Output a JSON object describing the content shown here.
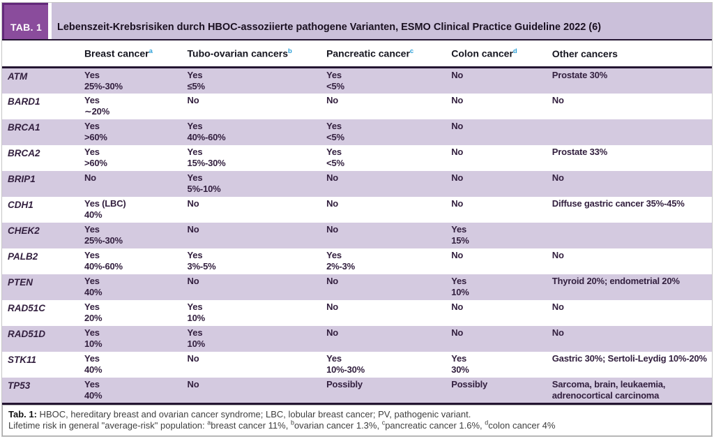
{
  "header": {
    "tab_label": "TAB. 1",
    "title": "Lebenszeit-Krebsrisiken durch HBOC-assoziierte pathogene Varianten, ESMO Clinical Practice Guideline 2022 (6)"
  },
  "columns": [
    {
      "label": "Breast cancer",
      "sup": "a"
    },
    {
      "label": "Tubo-ovarian cancers",
      "sup": "b"
    },
    {
      "label": "Pancreatic cancer",
      "sup": "c"
    },
    {
      "label": "Colon cancer",
      "sup": "d"
    },
    {
      "label": "Other cancers",
      "sup": ""
    }
  ],
  "rows": [
    {
      "gene": "ATM",
      "breast": [
        "Yes",
        "25%-30%"
      ],
      "tubo": [
        "Yes",
        "≤5%"
      ],
      "pancreatic": [
        "Yes",
        "<5%"
      ],
      "colon": [
        "No",
        ""
      ],
      "other": [
        "Prostate 30%",
        ""
      ]
    },
    {
      "gene": "BARD1",
      "breast": [
        "Yes",
        "∼20%"
      ],
      "tubo": [
        "No",
        ""
      ],
      "pancreatic": [
        "No",
        ""
      ],
      "colon": [
        "No",
        ""
      ],
      "other": [
        "No",
        ""
      ]
    },
    {
      "gene": "BRCA1",
      "breast": [
        "Yes",
        ">60%"
      ],
      "tubo": [
        "Yes",
        "40%-60%"
      ],
      "pancreatic": [
        "Yes",
        "<5%"
      ],
      "colon": [
        "No",
        ""
      ],
      "other": [
        "",
        ""
      ]
    },
    {
      "gene": "BRCA2",
      "breast": [
        "Yes",
        ">60%"
      ],
      "tubo": [
        "Yes",
        "15%-30%"
      ],
      "pancreatic": [
        "Yes",
        "<5%"
      ],
      "colon": [
        "No",
        ""
      ],
      "other": [
        "Prostate 33%",
        ""
      ]
    },
    {
      "gene": "BRIP1",
      "breast": [
        "No",
        ""
      ],
      "tubo": [
        "Yes",
        "5%-10%"
      ],
      "pancreatic": [
        "No",
        ""
      ],
      "colon": [
        "No",
        ""
      ],
      "other": [
        "No",
        ""
      ]
    },
    {
      "gene": "CDH1",
      "breast": [
        "Yes (LBC)",
        "40%"
      ],
      "tubo": [
        "No",
        ""
      ],
      "pancreatic": [
        "No",
        ""
      ],
      "colon": [
        "No",
        ""
      ],
      "other": [
        "Diffuse gastric cancer 35%-45%",
        ""
      ]
    },
    {
      "gene": "CHEK2",
      "breast": [
        "Yes",
        "25%-30%"
      ],
      "tubo": [
        "No",
        ""
      ],
      "pancreatic": [
        "No",
        ""
      ],
      "colon": [
        "Yes",
        "15%"
      ],
      "other": [
        "",
        ""
      ]
    },
    {
      "gene": "PALB2",
      "breast": [
        "Yes",
        "40%-60%"
      ],
      "tubo": [
        "Yes",
        "3%-5%"
      ],
      "pancreatic": [
        "Yes",
        "2%-3%"
      ],
      "colon": [
        "No",
        ""
      ],
      "other": [
        "No",
        ""
      ]
    },
    {
      "gene": "PTEN",
      "breast": [
        "Yes",
        "40%"
      ],
      "tubo": [
        "No",
        ""
      ],
      "pancreatic": [
        "No",
        ""
      ],
      "colon": [
        "Yes",
        "10%"
      ],
      "other": [
        "Thyroid 20%; endometrial 20%",
        ""
      ]
    },
    {
      "gene": "RAD51C",
      "breast": [
        "Yes",
        "20%"
      ],
      "tubo": [
        "Yes",
        "10%"
      ],
      "pancreatic": [
        "No",
        ""
      ],
      "colon": [
        "No",
        ""
      ],
      "other": [
        "No",
        ""
      ]
    },
    {
      "gene": "RAD51D",
      "breast": [
        "Yes",
        "10%"
      ],
      "tubo": [
        "Yes",
        "10%"
      ],
      "pancreatic": [
        "No",
        ""
      ],
      "colon": [
        "No",
        ""
      ],
      "other": [
        "No",
        ""
      ]
    },
    {
      "gene": "STK11",
      "breast": [
        "Yes",
        "40%"
      ],
      "tubo": [
        "No",
        ""
      ],
      "pancreatic": [
        "Yes",
        "10%-30%"
      ],
      "colon": [
        "Yes",
        "30%"
      ],
      "other": [
        "Gastric 30%; Sertoli-Leydig 10%-20%",
        ""
      ]
    },
    {
      "gene": "TP53",
      "breast": [
        "Yes",
        "40%"
      ],
      "tubo": [
        "No",
        ""
      ],
      "pancreatic": [
        "Possibly",
        ""
      ],
      "colon": [
        "Possibly",
        ""
      ],
      "other": [
        "Sarcoma, brain, leukaemia,",
        "adrenocortical carcinoma"
      ]
    }
  ],
  "footnote": {
    "label": "Tab. 1:",
    "line1": " HBOC, hereditary breast and ovarian cancer syndrome; LBC, lobular breast cancer; PV, pathogenic variant.",
    "line2_prefix": "Lifetime risk in general \"average-risk\" population: ",
    "line2_items": [
      {
        "sup": "a",
        "text": "breast cancer 11%, "
      },
      {
        "sup": "b",
        "text": "ovarian cancer 1.3%, "
      },
      {
        "sup": "c",
        "text": "pancreatic cancer 1.6%, "
      },
      {
        "sup": "d",
        "text": "colon cancer 4%"
      }
    ]
  },
  "colors": {
    "badge_purple": "#8a4c9c",
    "badge_border_purple": "#63297a",
    "title_band_lavender": "#cbc0da",
    "row_shade_lavender": "#d4cae0",
    "rule_dark": "#241532",
    "body_text": "#33203f",
    "superscript_blue": "#2da0d8"
  }
}
